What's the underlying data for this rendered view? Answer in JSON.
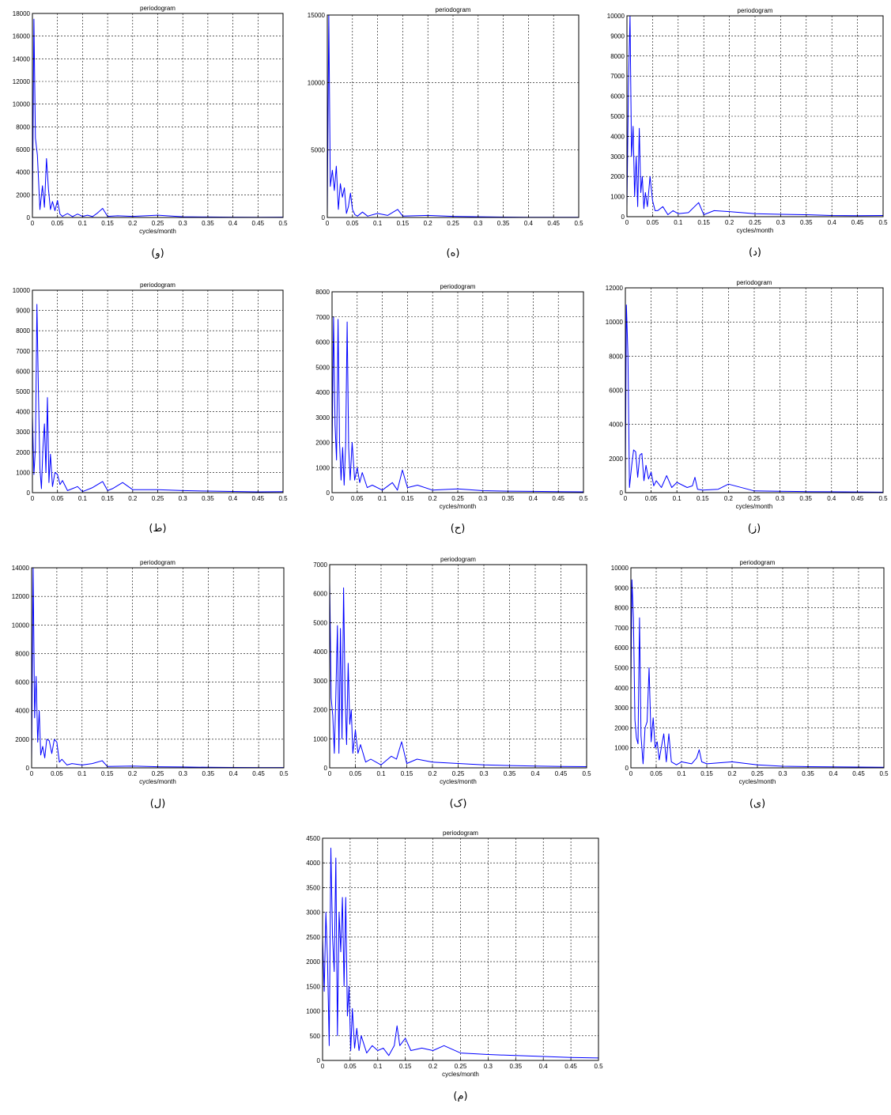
{
  "chart_data": [
    {
      "type": "line",
      "title": "periodogram",
      "xlabel": "cycles/month",
      "ylabel": "",
      "caption": "(و)",
      "xlim": [
        0,
        0.5
      ],
      "ylim": [
        0,
        18000
      ],
      "grid": true,
      "xticks": [
        "0",
        "0.05",
        "0.1",
        "0.15",
        "0.2",
        "0.25",
        "0.3",
        "0.35",
        "0.4",
        "0.45",
        "0.5"
      ],
      "yticks": [
        "0",
        "2000",
        "4000",
        "6000",
        "8000",
        "10000",
        "12000",
        "14000",
        "16000",
        "18000"
      ],
      "series": [
        {
          "color": "#0000ff",
          "x": [
            0,
            0.003,
            0.006,
            0.01,
            0.015,
            0.02,
            0.024,
            0.028,
            0.032,
            0.036,
            0.04,
            0.045,
            0.05,
            0.055,
            0.06,
            0.07,
            0.08,
            0.09,
            0.1,
            0.11,
            0.12,
            0.13,
            0.14,
            0.15,
            0.17,
            0.2,
            0.25,
            0.3,
            0.35,
            0.4,
            0.45,
            0.5
          ],
          "y": [
            100,
            17500,
            7000,
            5500,
            700,
            2800,
            900,
            5200,
            2500,
            700,
            1400,
            600,
            1500,
            300,
            100,
            350,
            80,
            300,
            100,
            200,
            80,
            400,
            800,
            100,
            150,
            100,
            200,
            60,
            40,
            30,
            20,
            30
          ]
        }
      ]
    },
    {
      "type": "line",
      "title": "periodogram",
      "xlabel": "",
      "ylabel": "",
      "caption": "(ه)",
      "xlim": [
        0,
        0.5
      ],
      "ylim": [
        0,
        15000
      ],
      "grid": true,
      "xticks": [
        "0",
        "0.05",
        "0.1",
        "0.15",
        "0.2",
        "0.25",
        "0.3",
        "0.35",
        "0.4",
        "0.45",
        "0.5"
      ],
      "yticks": [
        "0",
        "5000",
        "10000",
        "15000"
      ],
      "series": [
        {
          "color": "#0000ff",
          "x": [
            0,
            0.003,
            0.006,
            0.01,
            0.014,
            0.018,
            0.022,
            0.026,
            0.03,
            0.034,
            0.038,
            0.042,
            0.046,
            0.05,
            0.055,
            0.06,
            0.07,
            0.08,
            0.1,
            0.12,
            0.14,
            0.15,
            0.2,
            0.25,
            0.3,
            0.35,
            0.4,
            0.45,
            0.5
          ],
          "y": [
            200,
            15000,
            2300,
            3500,
            2000,
            3800,
            600,
            2500,
            1500,
            2200,
            300,
            800,
            1800,
            600,
            200,
            100,
            400,
            100,
            300,
            150,
            600,
            100,
            150,
            80,
            50,
            30,
            20,
            20,
            20
          ]
        }
      ]
    },
    {
      "type": "line",
      "title": "periodogram",
      "xlabel": "cycles/month",
      "ylabel": "",
      "caption": "(د)",
      "xlim": [
        0,
        0.5
      ],
      "ylim": [
        0,
        10000
      ],
      "grid": true,
      "xticks": [
        "0",
        "0.05",
        "0.1",
        "0.15",
        "0.2",
        "0.25",
        "0.3",
        "0.35",
        "0.4",
        "0.45",
        "0.5"
      ],
      "yticks": [
        "0",
        "1000",
        "2000",
        "3000",
        "4000",
        "5000",
        "6000",
        "7000",
        "8000",
        "9000",
        "10000"
      ],
      "series": [
        {
          "color": "#0000ff",
          "x": [
            0,
            0.003,
            0.006,
            0.009,
            0.012,
            0.015,
            0.018,
            0.021,
            0.024,
            0.027,
            0.03,
            0.033,
            0.036,
            0.04,
            0.045,
            0.05,
            0.055,
            0.06,
            0.07,
            0.08,
            0.09,
            0.1,
            0.12,
            0.14,
            0.15,
            0.17,
            0.2,
            0.25,
            0.3,
            0.35,
            0.4,
            0.45,
            0.5
          ],
          "y": [
            500,
            6500,
            10000,
            3000,
            4500,
            1000,
            3000,
            500,
            4400,
            1200,
            2000,
            400,
            1200,
            500,
            2000,
            800,
            300,
            300,
            500,
            100,
            300,
            150,
            200,
            700,
            100,
            300,
            250,
            150,
            120,
            100,
            60,
            50,
            60
          ]
        }
      ]
    },
    {
      "type": "line",
      "title": "periodogram",
      "xlabel": "",
      "ylabel": "",
      "caption": "(ط)",
      "xlim": [
        0,
        0.5
      ],
      "ylim": [
        0,
        10000
      ],
      "grid": true,
      "xticks": [
        "0",
        "0.05",
        "0.1",
        "0.15",
        "0.2",
        "0.25",
        "0.3",
        "0.35",
        "0.4",
        "0.45",
        "0.5"
      ],
      "yticks": [
        "0",
        "1000",
        "2000",
        "3000",
        "4000",
        "5000",
        "6000",
        "7000",
        "8000",
        "9000",
        "10000"
      ],
      "series": [
        {
          "color": "#0000ff",
          "x": [
            0,
            0.003,
            0.006,
            0.009,
            0.012,
            0.015,
            0.018,
            0.021,
            0.024,
            0.027,
            0.03,
            0.033,
            0.036,
            0.04,
            0.045,
            0.05,
            0.055,
            0.06,
            0.07,
            0.08,
            0.09,
            0.1,
            0.12,
            0.14,
            0.15,
            0.16,
            0.18,
            0.2,
            0.25,
            0.3,
            0.35,
            0.4,
            0.45,
            0.5
          ],
          "y": [
            3800,
            900,
            2200,
            9300,
            5000,
            1200,
            200,
            2200,
            3400,
            1000,
            4700,
            500,
            1900,
            300,
            1000,
            900,
            400,
            600,
            100,
            200,
            300,
            50,
            250,
            550,
            100,
            200,
            500,
            150,
            150,
            100,
            80,
            60,
            40,
            50
          ]
        }
      ]
    },
    {
      "type": "line",
      "title": "periodogram",
      "xlabel": "cycles/month",
      "ylabel": "",
      "caption": "(ح)",
      "xlim": [
        0,
        0.5
      ],
      "ylim": [
        0,
        8000
      ],
      "grid": true,
      "xticks": [
        "0",
        "0.05",
        "0.1",
        "0.15",
        "0.2",
        "0.25",
        "0.3",
        "0.35",
        "0.4",
        "0.45",
        "0.5"
      ],
      "yticks": [
        "0",
        "1000",
        "2000",
        "3000",
        "4000",
        "5000",
        "6000",
        "7000",
        "8000"
      ],
      "series": [
        {
          "color": "#0000ff",
          "x": [
            0,
            0.003,
            0.006,
            0.009,
            0.012,
            0.015,
            0.018,
            0.021,
            0.024,
            0.027,
            0.03,
            0.033,
            0.036,
            0.04,
            0.045,
            0.05,
            0.055,
            0.06,
            0.07,
            0.08,
            0.1,
            0.12,
            0.13,
            0.14,
            0.15,
            0.17,
            0.2,
            0.25,
            0.3,
            0.35,
            0.4,
            0.45,
            0.5
          ],
          "y": [
            1500,
            7000,
            2700,
            1300,
            6900,
            2000,
            500,
            1800,
            300,
            1900,
            6800,
            1800,
            500,
            2000,
            500,
            1000,
            400,
            800,
            200,
            300,
            100,
            400,
            100,
            900,
            200,
            300,
            100,
            150,
            80,
            60,
            50,
            40,
            30
          ]
        }
      ]
    },
    {
      "type": "line",
      "title": "periodogram",
      "xlabel": "cycles/month",
      "ylabel": "",
      "caption": "(ز)",
      "xlim": [
        0,
        0.5
      ],
      "ylim": [
        0,
        12000
      ],
      "grid": true,
      "xticks": [
        "0",
        "0.05",
        "0.1",
        "0.15",
        "0.2",
        "0.25",
        "0.3",
        "0.35",
        "0.4",
        "0.45",
        "0.5"
      ],
      "yticks": [
        "0",
        "2000",
        "4000",
        "6000",
        "8000",
        "10000",
        "12000"
      ],
      "series": [
        {
          "color": "#0000ff",
          "x": [
            0,
            0.002,
            0.005,
            0.008,
            0.012,
            0.016,
            0.02,
            0.024,
            0.028,
            0.032,
            0.036,
            0.04,
            0.045,
            0.05,
            0.055,
            0.06,
            0.07,
            0.08,
            0.09,
            0.1,
            0.12,
            0.13,
            0.135,
            0.14,
            0.15,
            0.18,
            0.2,
            0.25,
            0.3,
            0.35,
            0.4,
            0.45,
            0.5
          ],
          "y": [
            500,
            11000,
            8000,
            300,
            1500,
            2500,
            2400,
            900,
            2200,
            2300,
            700,
            1600,
            800,
            1200,
            400,
            700,
            300,
            1000,
            300,
            600,
            300,
            400,
            900,
            200,
            150,
            200,
            500,
            100,
            80,
            60,
            50,
            40,
            30
          ]
        }
      ]
    },
    {
      "type": "line",
      "title": "periodogram",
      "xlabel": "cycles/month",
      "ylabel": "",
      "caption": "(ل)",
      "xlim": [
        0,
        0.5
      ],
      "ylim": [
        0,
        14000
      ],
      "grid": true,
      "xticks": [
        "0",
        "0.05",
        "0.1",
        "0.15",
        "0.2",
        "0.25",
        "0.3",
        "0.35",
        "0.4",
        "0.45",
        "0.5"
      ],
      "yticks": [
        "0",
        "2000",
        "4000",
        "6000",
        "8000",
        "10000",
        "12000",
        "14000"
      ],
      "series": [
        {
          "color": "#0000ff",
          "x": [
            0,
            0.003,
            0.006,
            0.009,
            0.012,
            0.015,
            0.018,
            0.022,
            0.026,
            0.03,
            0.035,
            0.04,
            0.045,
            0.05,
            0.055,
            0.06,
            0.07,
            0.08,
            0.1,
            0.12,
            0.14,
            0.15,
            0.2,
            0.25,
            0.3,
            0.35,
            0.4,
            0.45,
            0.5
          ],
          "y": [
            500,
            14000,
            3500,
            6400,
            1800,
            4000,
            900,
            1500,
            700,
            2000,
            1900,
            1000,
            2000,
            1800,
            400,
            600,
            200,
            300,
            200,
            300,
            500,
            100,
            120,
            80,
            60,
            40,
            30,
            20,
            20
          ]
        }
      ]
    },
    {
      "type": "line",
      "title": "periodogram",
      "xlabel": "cycles/month",
      "ylabel": "",
      "caption": "(ک)",
      "xlim": [
        0,
        0.5
      ],
      "ylim": [
        0,
        7000
      ],
      "grid": true,
      "xticks": [
        "0",
        "0.05",
        "0.1",
        "0.15",
        "0.2",
        "0.25",
        "0.3",
        "0.35",
        "0.4",
        "0.45",
        "0.5"
      ],
      "yticks": [
        "0",
        "1000",
        "2000",
        "3000",
        "4000",
        "5000",
        "6000",
        "7000"
      ],
      "series": [
        {
          "color": "#0000ff",
          "x": [
            0,
            0.003,
            0.006,
            0.009,
            0.012,
            0.015,
            0.018,
            0.021,
            0.024,
            0.027,
            0.03,
            0.033,
            0.036,
            0.039,
            0.042,
            0.045,
            0.05,
            0.055,
            0.06,
            0.07,
            0.08,
            0.1,
            0.12,
            0.13,
            0.14,
            0.15,
            0.17,
            0.2,
            0.25,
            0.3,
            0.35,
            0.4,
            0.45,
            0.5
          ],
          "y": [
            6400,
            2400,
            1800,
            500,
            2500,
            4900,
            500,
            4800,
            1000,
            6200,
            2500,
            800,
            3600,
            1500,
            2000,
            500,
            1300,
            500,
            800,
            200,
            300,
            100,
            400,
            300,
            900,
            150,
            300,
            200,
            150,
            100,
            80,
            60,
            50,
            40
          ]
        }
      ]
    },
    {
      "type": "line",
      "title": "periodogram",
      "xlabel": "cycles/month",
      "ylabel": "",
      "caption": "(ی)",
      "xlim": [
        0,
        0.5
      ],
      "ylim": [
        0,
        10000
      ],
      "grid": true,
      "xticks": [
        "0",
        "0.05",
        "0.1",
        "0.15",
        "0.2",
        "0.25",
        "0.3",
        "0.35",
        "0.4",
        "0.45",
        "0.5"
      ],
      "yticks": [
        "0",
        "1000",
        "2000",
        "3000",
        "4000",
        "5000",
        "6000",
        "7000",
        "8000",
        "9000",
        "10000"
      ],
      "series": [
        {
          "color": "#0000ff",
          "x": [
            0,
            0.002,
            0.005,
            0.008,
            0.011,
            0.014,
            0.017,
            0.02,
            0.024,
            0.028,
            0.032,
            0.036,
            0.04,
            0.044,
            0.048,
            0.052,
            0.056,
            0.06,
            0.065,
            0.07,
            0.075,
            0.08,
            0.09,
            0.1,
            0.12,
            0.13,
            0.135,
            0.14,
            0.15,
            0.2,
            0.25,
            0.3,
            0.35,
            0.4,
            0.45,
            0.5
          ],
          "y": [
            4000,
            9400,
            7500,
            2400,
            1500,
            1200,
            7500,
            1600,
            200,
            2000,
            2300,
            5000,
            1300,
            2500,
            1000,
            1300,
            400,
            1000,
            1700,
            300,
            1700,
            300,
            150,
            300,
            200,
            500,
            900,
            300,
            200,
            300,
            150,
            80,
            60,
            50,
            40,
            30
          ]
        }
      ]
    },
    {
      "type": "line",
      "title": "periodogram",
      "xlabel": "cycles/month",
      "ylabel": "",
      "caption": "(م)",
      "xlim": [
        0,
        0.5
      ],
      "ylim": [
        0,
        4500
      ],
      "grid": true,
      "xticks": [
        "0",
        "0.05",
        "0.1",
        "0.15",
        "0.2",
        "0.25",
        "0.3",
        "0.35",
        "0.4",
        "0.45",
        "0.5"
      ],
      "yticks": [
        "0",
        "500",
        "1000",
        "1500",
        "2000",
        "2500",
        "3000",
        "3500",
        "4000",
        "4500"
      ],
      "series": [
        {
          "color": "#0000ff",
          "x": [
            0,
            0.003,
            0.006,
            0.009,
            0.012,
            0.015,
            0.018,
            0.021,
            0.024,
            0.027,
            0.03,
            0.033,
            0.036,
            0.039,
            0.042,
            0.045,
            0.048,
            0.051,
            0.054,
            0.058,
            0.062,
            0.066,
            0.07,
            0.08,
            0.09,
            0.1,
            0.11,
            0.12,
            0.13,
            0.135,
            0.14,
            0.15,
            0.16,
            0.18,
            0.2,
            0.22,
            0.25,
            0.3,
            0.35,
            0.4,
            0.45,
            0.5
          ],
          "y": [
            2500,
            1400,
            3000,
            2000,
            300,
            4300,
            2500,
            1800,
            4100,
            500,
            3000,
            2200,
            3300,
            1500,
            3300,
            900,
            1500,
            200,
            1050,
            250,
            650,
            200,
            500,
            150,
            300,
            200,
            250,
            100,
            300,
            700,
            300,
            450,
            200,
            250,
            200,
            300,
            150,
            120,
            100,
            80,
            60,
            50
          ]
        }
      ]
    }
  ]
}
